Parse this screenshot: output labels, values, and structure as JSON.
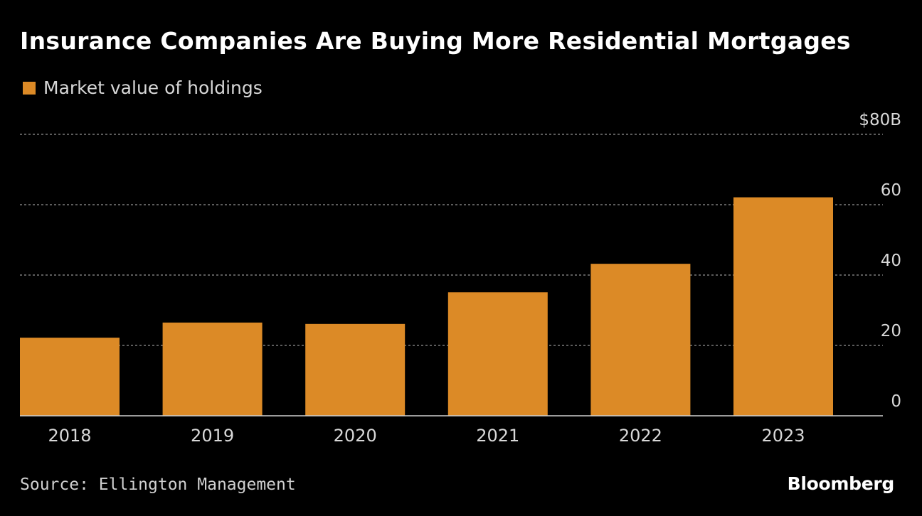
{
  "chart_data": {
    "type": "bar",
    "title": "Insurance Companies Are Buying More Residential Mortgages",
    "categories": [
      "2018",
      "2019",
      "2020",
      "2021",
      "2022",
      "2023"
    ],
    "series": [
      {
        "name": "Market value of holdings",
        "values": [
          22.2,
          26.5,
          26.1,
          35.1,
          43.2,
          62.1
        ],
        "color": "#dc8a26"
      }
    ],
    "ylim": [
      0,
      80
    ],
    "yticks": [
      0,
      20,
      40,
      60,
      80
    ],
    "ytick_labels": [
      "0",
      "20",
      "40",
      "60",
      "$80B"
    ],
    "xlabel": "",
    "ylabel": "",
    "grid": true,
    "legend_position": "top-left",
    "y_axis_side": "right"
  },
  "colors": {
    "background": "#000000",
    "bar": "#dc8a26",
    "gridline": "#7a7a7a",
    "baseline": "#cfcfcf",
    "tick_text": "#d8d8d8"
  },
  "footer": {
    "source": "Source: Ellington Management",
    "brand": "Bloomberg"
  }
}
